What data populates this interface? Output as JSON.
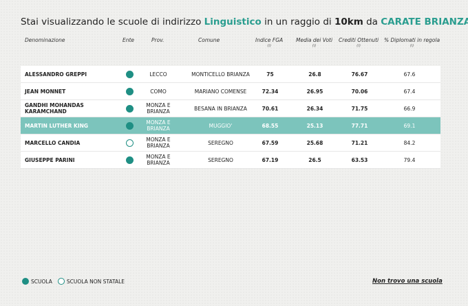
{
  "title": {
    "prefix": "Stai visualizzando le scuole di indirizzo ",
    "indirizzo": "Linguistico",
    "middle": " in un raggio di ",
    "raggio": "10km",
    "da": " da ",
    "comune": "CARATE BRIANZA"
  },
  "columns": {
    "denominazione": "Denominazione",
    "ente": "Ente",
    "prov": "Prov.",
    "comune": "Comune",
    "fga": "Indice FGA",
    "voti": "Media dei Voti",
    "crediti": "Crediti Ottenuti",
    "diplomati": "% Diplomati in regola",
    "info_mark": "(i)"
  },
  "rows": [
    {
      "name": "ALESSANDRO GREPPI",
      "ente": "statale",
      "prov": "LECCO",
      "comune": "MONTICELLO BRIANZA",
      "fga": "75",
      "voti": "26.8",
      "crediti": "76.67",
      "diplomati": "67.6",
      "highlight": false
    },
    {
      "name": "JEAN MONNET",
      "ente": "statale",
      "prov": "COMO",
      "comune": "MARIANO COMENSE",
      "fga": "72.34",
      "voti": "26.95",
      "crediti": "70.06",
      "diplomati": "67.4",
      "highlight": false
    },
    {
      "name": "GANDHI MOHANDAS KARAMCHAND",
      "ente": "statale",
      "prov": "MONZA E BRIANZA",
      "comune": "BESANA IN BRIANZA",
      "fga": "70.61",
      "voti": "26.34",
      "crediti": "71.75",
      "diplomati": "66.9",
      "highlight": false
    },
    {
      "name": "MARTIN LUTHER KING",
      "ente": "statale",
      "prov": "MONZA E BRIANZA",
      "comune": "MUGGIO'",
      "fga": "68.55",
      "voti": "25.13",
      "crediti": "77.71",
      "diplomati": "69.1",
      "highlight": true
    },
    {
      "name": "MARCELLO CANDIA",
      "ente": "non-statale",
      "prov": "MONZA E BRIANZA",
      "comune": "SEREGNO",
      "fga": "67.59",
      "voti": "25.68",
      "crediti": "71.21",
      "diplomati": "84.2",
      "highlight": false
    },
    {
      "name": "GIUSEPPE PARINI",
      "ente": "statale",
      "prov": "MONZA E BRIANZA",
      "comune": "SEREGNO",
      "fga": "67.19",
      "voti": "26.5",
      "crediti": "63.53",
      "diplomati": "79.4",
      "highlight": false
    }
  ],
  "legend": {
    "scuola": "SCUOLA",
    "non_statale": "SCUOLA NON STATALE"
  },
  "not_found_link": "Non trovo una scuola",
  "colors": {
    "accent": "#2a9d8f",
    "highlight_row": "#7cc4bc",
    "dot": "#1f8f84"
  }
}
